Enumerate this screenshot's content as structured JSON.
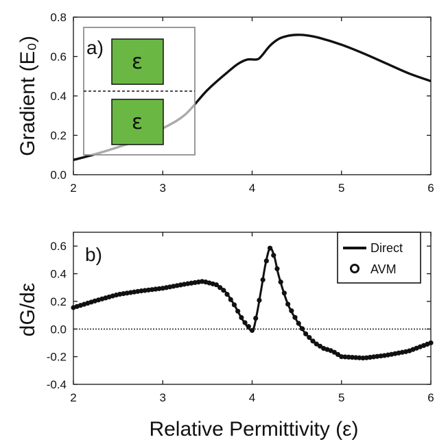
{
  "chart_data": [
    {
      "panel": "a)",
      "type": "line",
      "ylabel": "Gradient (E₀)",
      "xlabel": "",
      "xlim": [
        2,
        6
      ],
      "ylim": [
        0,
        0.8
      ],
      "xticks": [
        "2",
        "3",
        "4",
        "5",
        "6"
      ],
      "yticks": [
        "0.0",
        "0.2",
        "0.4",
        "0.6",
        "0.8"
      ],
      "series": [
        {
          "name": "Gradient",
          "x": [
            2.0,
            2.25,
            2.5,
            2.75,
            3.0,
            3.25,
            3.5,
            3.75,
            3.85,
            3.95,
            4.05,
            4.1,
            4.2,
            4.3,
            4.4,
            4.5,
            4.6,
            4.75,
            5.0,
            5.25,
            5.5,
            5.75,
            6.0
          ],
          "y": [
            0.075,
            0.105,
            0.14,
            0.18,
            0.235,
            0.305,
            0.43,
            0.53,
            0.565,
            0.585,
            0.585,
            0.6,
            0.655,
            0.69,
            0.705,
            0.71,
            0.708,
            0.695,
            0.66,
            0.615,
            0.565,
            0.515,
            0.475
          ]
        }
      ],
      "inset": {
        "labels": [
          "ε",
          "ε"
        ],
        "box_color": "#6ab843"
      }
    },
    {
      "panel": "b)",
      "type": "line",
      "ylabel": "dG/dε",
      "xlabel": "Relative Permittivity (ε)",
      "xlim": [
        2,
        6
      ],
      "ylim": [
        -0.4,
        0.7
      ],
      "xticks": [
        "2",
        "3",
        "4",
        "5",
        "6"
      ],
      "yticks": [
        "-0.4",
        "-0.2",
        "0.0",
        "0.2",
        "0.4",
        "0.6"
      ],
      "legend": [
        "Direct",
        "AVM"
      ],
      "legend_position": "top-right",
      "series": [
        {
          "name": "Direct",
          "x": [
            2.0,
            2.25,
            2.5,
            2.75,
            3.0,
            3.25,
            3.45,
            3.6,
            3.7,
            3.8,
            3.9,
            4.0,
            4.05,
            4.1,
            4.15,
            4.2,
            4.25,
            4.3,
            4.4,
            4.5,
            4.6,
            4.7,
            4.8,
            4.9,
            5.0,
            5.25,
            5.5,
            5.75,
            6.0
          ],
          "y": [
            0.155,
            0.205,
            0.25,
            0.275,
            0.295,
            0.325,
            0.345,
            0.32,
            0.27,
            0.175,
            0.06,
            -0.01,
            0.1,
            0.28,
            0.47,
            0.585,
            0.52,
            0.38,
            0.18,
            0.06,
            -0.035,
            -0.1,
            -0.14,
            -0.16,
            -0.2,
            -0.21,
            -0.19,
            -0.16,
            -0.1
          ]
        },
        {
          "name": "AVM",
          "x": "same-as-Direct",
          "y": "same-as-Direct"
        }
      ]
    }
  ]
}
